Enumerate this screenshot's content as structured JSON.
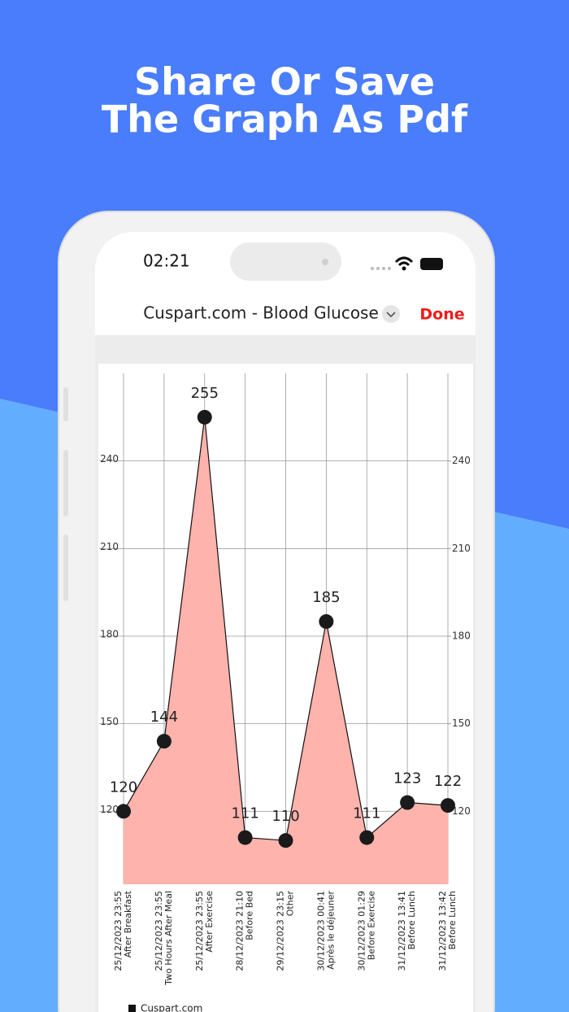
{
  "headline": [
    "Share Or Save",
    "The Graph As Pdf"
  ],
  "status": {
    "time": "02:21"
  },
  "nav": {
    "title": "Cuspart.com - Blood Glucose",
    "done": "Done"
  },
  "chart_data": {
    "type": "area",
    "categories": [
      [
        "25/12/2023 23:55",
        "After Breakfast"
      ],
      [
        "25/12/2023 23:55",
        "Two Hours After Meal"
      ],
      [
        "25/12/2023 23:55",
        "After Exercise"
      ],
      [
        "28/12/2023 21:10",
        "Before Bed"
      ],
      [
        "29/12/2023 23:15",
        "Other"
      ],
      [
        "30/12/2023 00:41",
        "Après le déjeuner"
      ],
      [
        "30/12/2023 01:29",
        "Before Exercise"
      ],
      [
        "31/12/2023 13:41",
        "Before Lunch"
      ],
      [
        "31/12/2023 13:42",
        "Before Lunch"
      ]
    ],
    "series": [
      {
        "name": "Cuspart.com",
        "color": "#ffb3ad",
        "line_color": "#111111",
        "values": [
          120,
          144,
          255,
          111,
          110,
          185,
          111,
          123,
          122
        ]
      }
    ],
    "ylim": [
      95,
      270
    ],
    "yticks": [
      120,
      150,
      180,
      210,
      240
    ],
    "y2lim": [
      95,
      270
    ],
    "y2ticks": [
      120,
      150,
      180,
      210,
      240
    ],
    "grid": true,
    "legend": "bottom"
  }
}
